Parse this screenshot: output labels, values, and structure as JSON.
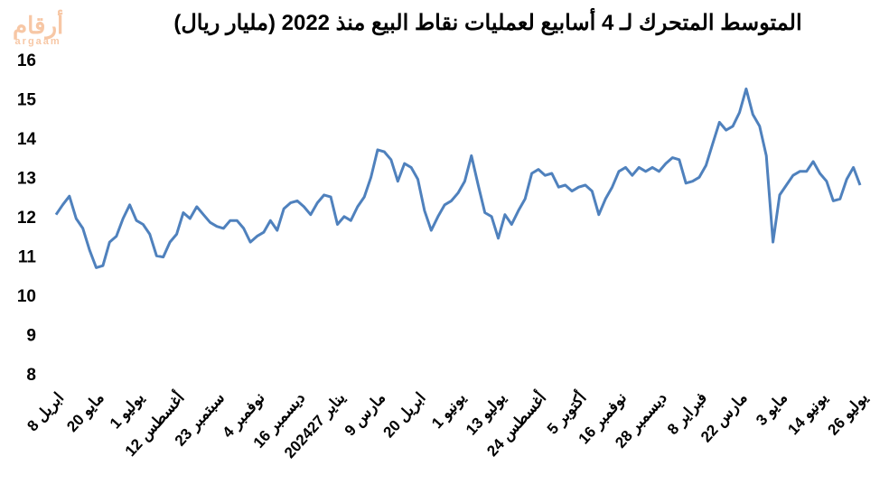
{
  "logo": {
    "text": "أرقام",
    "sub": "argaam"
  },
  "chart_data": {
    "type": "line",
    "title": "المتوسط المتحرك لـ 4 أسابيع لعمليات نقاط البيع منذ 2022 (مليار ريال)",
    "categories": [
      "ابريل 8",
      null,
      null,
      null,
      null,
      null,
      "مايو 20",
      null,
      null,
      null,
      null,
      null,
      "يوليو 1",
      null,
      null,
      null,
      null,
      null,
      "أغسطس 12",
      null,
      null,
      null,
      null,
      null,
      "سبتمبر 23",
      null,
      null,
      null,
      null,
      null,
      "نوفمبر 4",
      null,
      null,
      null,
      null,
      null,
      "ديسمبر 16",
      null,
      null,
      null,
      null,
      null,
      "2024يناير 27",
      null,
      null,
      null,
      null,
      null,
      "مارس 9",
      null,
      null,
      null,
      null,
      null,
      "ابريل 20",
      null,
      null,
      null,
      null,
      null,
      "يونيو 1",
      null,
      null,
      null,
      null,
      null,
      "يوليو 13",
      null,
      null,
      null,
      null,
      null,
      "أغسطس 24",
      null,
      null,
      null,
      null,
      null,
      "أكتوبر 5",
      null,
      null,
      null,
      null,
      null,
      "نوفمبر 16",
      null,
      null,
      null,
      null,
      null,
      "ديسمبر 28",
      null,
      null,
      null,
      null,
      null,
      "فبراير 8",
      null,
      null,
      null,
      null,
      null,
      "مارس 22",
      null,
      null,
      null,
      null,
      null,
      "مايو 3",
      null,
      null,
      null,
      null,
      null,
      "يونيو 14",
      null,
      null,
      null,
      null,
      null,
      "يوليو 26"
    ],
    "series": [
      {
        "name": "المتوسط المتحرك",
        "color": "#4f81bd",
        "values": [
          12.1,
          12.35,
          12.57,
          12.0,
          11.75,
          11.2,
          10.75,
          10.8,
          11.4,
          11.55,
          12.0,
          12.35,
          11.95,
          11.85,
          11.6,
          11.05,
          11.02,
          11.4,
          11.6,
          12.15,
          12.0,
          12.3,
          12.1,
          11.9,
          11.8,
          11.75,
          11.95,
          11.95,
          11.75,
          11.4,
          11.55,
          11.65,
          11.95,
          11.7,
          12.25,
          12.4,
          12.45,
          12.3,
          12.1,
          12.4,
          12.6,
          12.55,
          11.85,
          12.05,
          11.95,
          12.3,
          12.55,
          13.05,
          13.75,
          13.7,
          13.5,
          12.95,
          13.4,
          13.3,
          13.0,
          12.2,
          11.7,
          12.05,
          12.35,
          12.45,
          12.65,
          12.95,
          13.6,
          12.85,
          12.15,
          12.05,
          11.5,
          12.1,
          11.85,
          12.2,
          12.5,
          13.15,
          13.25,
          13.1,
          13.15,
          12.8,
          12.85,
          12.7,
          12.8,
          12.85,
          12.7,
          12.1,
          12.5,
          12.8,
          13.2,
          13.3,
          13.1,
          13.3,
          13.2,
          13.3,
          13.2,
          13.4,
          13.55,
          13.5,
          12.9,
          12.95,
          13.05,
          13.35,
          13.9,
          14.45,
          14.25,
          14.35,
          14.7,
          15.3,
          14.65,
          14.35,
          13.6,
          11.4,
          12.6,
          12.85,
          13.1,
          13.2,
          13.2,
          13.45,
          13.15,
          12.95,
          12.45,
          12.5,
          13.0,
          13.3,
          12.85
        ]
      }
    ],
    "ylim": [
      8,
      16
    ],
    "yticks": [
      8,
      9,
      10,
      11,
      12,
      13,
      14,
      15,
      16
    ],
    "grid": false
  }
}
